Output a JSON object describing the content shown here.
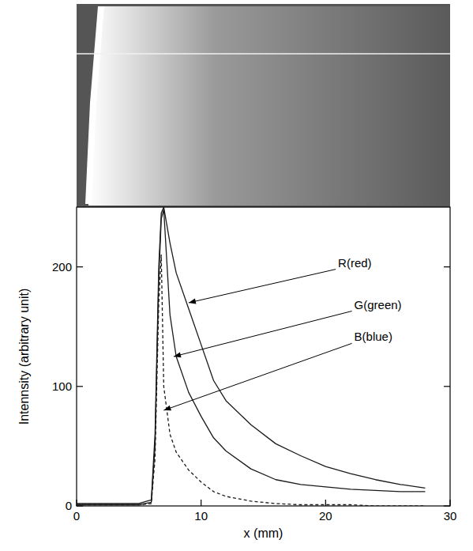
{
  "chart_data": {
    "type": "line",
    "xlabel": "x (mm)",
    "ylabel": "Intennsity (arbitrary unit)",
    "x": [
      0,
      2,
      4,
      5,
      6,
      6.3,
      6.6,
      6.8,
      7,
      7.5,
      8,
      9,
      10,
      11,
      12,
      14,
      16,
      18,
      20,
      22,
      24,
      26,
      28
    ],
    "series": [
      {
        "name": "R(red)",
        "color": "#1a1a1a",
        "line_style": "solid",
        "values": [
          2,
          2,
          2,
          2,
          5,
          60,
          200,
          245,
          250,
          220,
          195,
          165,
          135,
          105,
          88,
          68,
          52,
          42,
          33,
          27,
          22,
          18,
          15
        ]
      },
      {
        "name": "G(green)",
        "color": "#1a1a1a",
        "line_style": "solid",
        "values": [
          1,
          1,
          1,
          1,
          3,
          50,
          190,
          240,
          248,
          160,
          125,
          95,
          75,
          57,
          46,
          31,
          22,
          18,
          16,
          14,
          13,
          12,
          12
        ]
      },
      {
        "name": "B(blue)",
        "color": "#1a1a1a",
        "line_style": "dashed",
        "values": [
          1,
          1,
          1,
          1,
          2,
          40,
          170,
          210,
          100,
          60,
          45,
          30,
          20,
          12,
          8,
          4,
          2,
          1,
          1,
          1,
          0,
          0,
          0
        ]
      }
    ],
    "annotations": [
      {
        "series": 0,
        "x": 9,
        "y": 170,
        "text_x": 21,
        "text_y": 200
      },
      {
        "series": 1,
        "x": 7.8,
        "y": 125,
        "text_x": 22.3,
        "text_y": 165
      },
      {
        "series": 2,
        "x": 7,
        "y": 80,
        "text_x": 22.3,
        "text_y": 138
      }
    ],
    "xlim": [
      0,
      30
    ],
    "ylim": [
      0,
      250
    ],
    "xticks": [
      0,
      10,
      20,
      30
    ],
    "yticks": [
      0,
      100,
      200
    ],
    "grid": false
  }
}
